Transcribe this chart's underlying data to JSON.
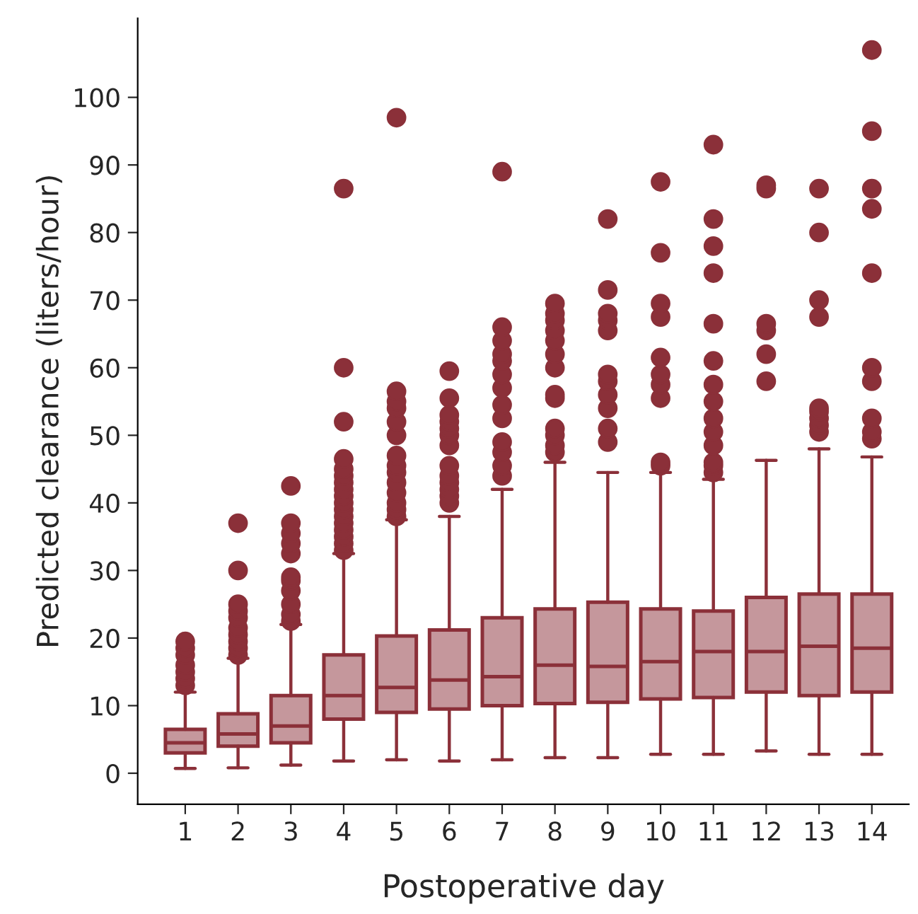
{
  "chart_data": {
    "type": "box",
    "xlabel": "Postoperative day",
    "ylabel": "Predicted clearance (liters/hour)",
    "categories": [
      "1",
      "2",
      "3",
      "4",
      "5",
      "6",
      "7",
      "8",
      "9",
      "10",
      "11",
      "12",
      "13",
      "14"
    ],
    "color": "#8b3039",
    "ylim": [
      -4.6,
      111.7
    ],
    "yticks": [
      0,
      10,
      20,
      30,
      40,
      50,
      60,
      70,
      80,
      90,
      100
    ],
    "grid": false,
    "boxes": [
      {
        "low": 0.7,
        "q1": 3.0,
        "median": 4.5,
        "q3": 6.5,
        "high": 12,
        "outliers": [
          13,
          14,
          15,
          16,
          17.5,
          18.5,
          19.5
        ]
      },
      {
        "low": 0.8,
        "q1": 4,
        "median": 5.8,
        "q3": 8.8,
        "high": 17,
        "outliers": [
          17.5,
          18.5,
          19.5,
          20.5,
          21.5,
          23,
          24,
          25,
          30,
          37
        ]
      },
      {
        "low": 1.2,
        "q1": 4.5,
        "median": 7,
        "q3": 11.5,
        "high": 22,
        "outliers": [
          22.5,
          23.5,
          25,
          27,
          28.5,
          29,
          32.5,
          34,
          35.5,
          37,
          42.5
        ]
      },
      {
        "low": 1.8,
        "q1": 8,
        "median": 11.5,
        "q3": 17.5,
        "high": 32.5,
        "outliers": [
          33,
          34,
          35,
          36,
          37,
          38,
          39,
          40,
          41,
          42,
          43,
          44,
          45,
          46.5,
          52,
          60,
          86.5
        ]
      },
      {
        "low": 2,
        "q1": 9,
        "median": 12.7,
        "q3": 20.3,
        "high": 37.5,
        "outliers": [
          38,
          39,
          40,
          41.5,
          43,
          44.5,
          45.5,
          47,
          50,
          52,
          54,
          55,
          56.5,
          97
        ]
      },
      {
        "low": 1.8,
        "q1": 9.5,
        "median": 13.8,
        "q3": 21.2,
        "high": 38,
        "outliers": [
          40,
          41,
          42,
          43,
          44,
          45.5,
          48.5,
          50,
          51,
          52,
          53,
          55.5,
          59.5
        ]
      },
      {
        "low": 2,
        "q1": 10,
        "median": 14.3,
        "q3": 23,
        "high": 42,
        "outliers": [
          44,
          45.5,
          47.5,
          49,
          52.5,
          54.5,
          57,
          59,
          61,
          62,
          64,
          66,
          89
        ]
      },
      {
        "low": 2.3,
        "q1": 10.3,
        "median": 16,
        "q3": 24.3,
        "high": 46,
        "outliers": [
          47.5,
          48.5,
          50,
          51,
          55.5,
          56,
          60,
          62,
          64,
          65.5,
          67,
          68,
          69.5
        ]
      },
      {
        "low": 2.3,
        "q1": 10.5,
        "median": 15.8,
        "q3": 25.3,
        "high": 44.5,
        "outliers": [
          49,
          51,
          54,
          56,
          58,
          59,
          65.5,
          67,
          68,
          71.5,
          82
        ]
      },
      {
        "low": 2.8,
        "q1": 11,
        "median": 16.5,
        "q3": 24.3,
        "high": 44.5,
        "outliers": [
          45.5,
          46,
          55.5,
          57.5,
          59,
          61.5,
          67.5,
          69.5,
          77,
          87.5
        ]
      },
      {
        "low": 2.8,
        "q1": 11.2,
        "median": 18,
        "q3": 24,
        "high": 43.5,
        "outliers": [
          44.5,
          45.5,
          46,
          48.5,
          50.5,
          52.5,
          55,
          57.5,
          61,
          66.5,
          74,
          78,
          82,
          93
        ]
      },
      {
        "low": 3.3,
        "q1": 12,
        "median": 18,
        "q3": 26,
        "high": 46.3,
        "outliers": [
          58,
          62,
          65.5,
          66.5,
          86.5,
          87
        ]
      },
      {
        "low": 2.8,
        "q1": 11.5,
        "median": 18.8,
        "q3": 26.5,
        "high": 48,
        "outliers": [
          50.5,
          51.5,
          52.5,
          53.5,
          54,
          67.5,
          70,
          80,
          86.5
        ]
      },
      {
        "low": 2.8,
        "q1": 12,
        "median": 18.5,
        "q3": 26.5,
        "high": 46.8,
        "outliers": [
          49.5,
          50.5,
          52.5,
          58,
          60,
          74,
          83.5,
          86.5,
          95,
          107
        ]
      }
    ]
  }
}
